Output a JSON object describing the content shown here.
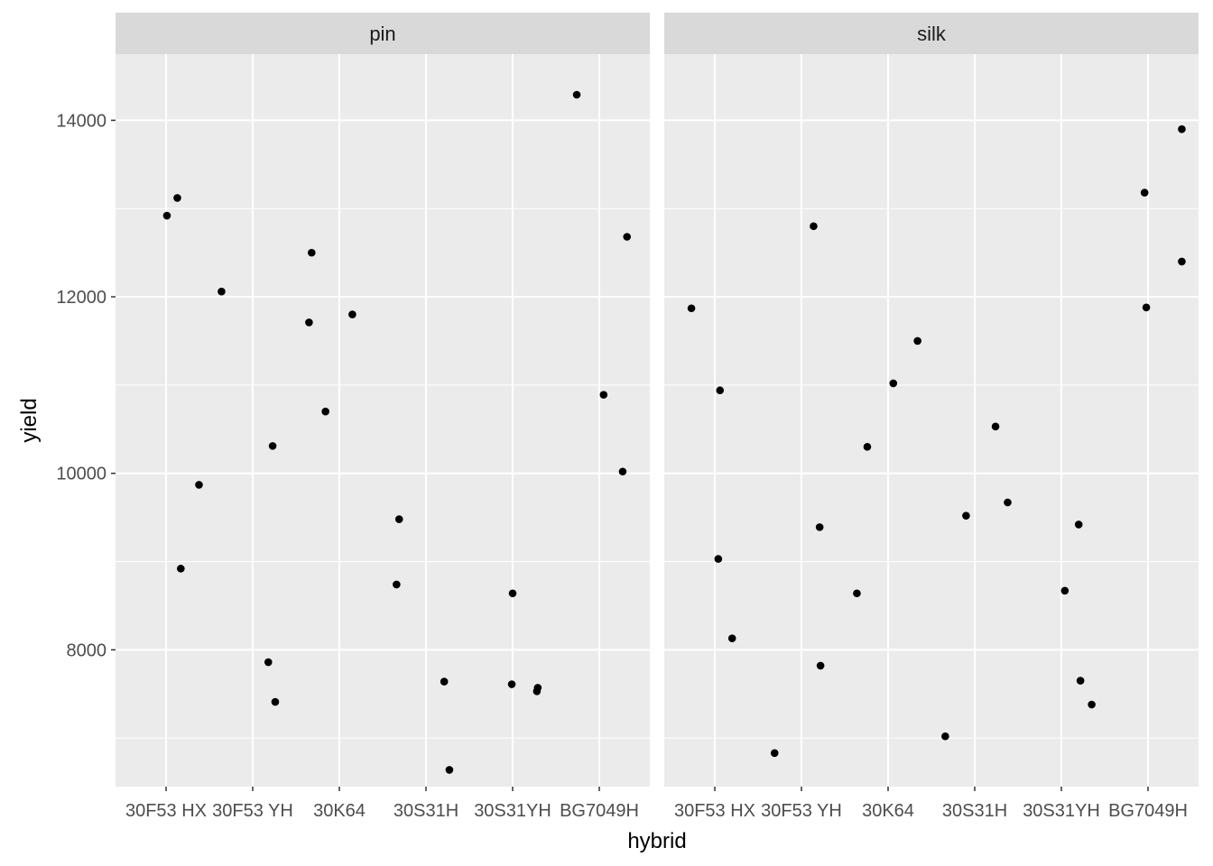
{
  "chart_data": {
    "type": "scatter",
    "xlabel": "hybrid",
    "ylabel": "yield",
    "categories": [
      "30F53 HX",
      "30F53 YH",
      "30K64",
      "30S31H",
      "30S31YH",
      "BG7049H"
    ],
    "ylim": [
      6450,
      14750
    ],
    "yticks": [
      8000,
      10000,
      12000,
      14000
    ],
    "grid": true,
    "colors": {
      "panel_bg": "#EBEBEB",
      "strip_bg": "#D9D9D9",
      "grid": "#FFFFFF",
      "point": "#000000"
    },
    "facets": [
      {
        "label": "pin",
        "points": [
          {
            "category": "30F53 HX",
            "jitter": 0.01,
            "y": 12920
          },
          {
            "category": "30F53 HX",
            "jitter": 0.13,
            "y": 13120
          },
          {
            "category": "30F53 HX",
            "jitter": 0.17,
            "y": 8920
          },
          {
            "category": "30F53 HX",
            "jitter": 0.38,
            "y": 9870
          },
          {
            "category": "30F53 HX",
            "jitter": 0.64,
            "y": 12060
          },
          {
            "category": "30F53 YH",
            "jitter": 0.18,
            "y": 7860
          },
          {
            "category": "30F53 YH",
            "jitter": 0.23,
            "y": 10310
          },
          {
            "category": "30F53 YH",
            "jitter": 0.26,
            "y": 7410
          },
          {
            "category": "30F53 YH",
            "jitter": 0.65,
            "y": 11710
          },
          {
            "category": "30F53 YH",
            "jitter": 0.68,
            "y": 12500
          },
          {
            "category": "30F53 YH",
            "jitter": 0.84,
            "y": 10700
          },
          {
            "category": "30K64",
            "jitter": 0.15,
            "y": 11800
          },
          {
            "category": "30K64",
            "jitter": 0.66,
            "y": 8740
          },
          {
            "category": "30K64",
            "jitter": 0.69,
            "y": 9480
          },
          {
            "category": "30S31H",
            "jitter": 0.21,
            "y": 7640
          },
          {
            "category": "30S31H",
            "jitter": 0.27,
            "y": 6640
          },
          {
            "category": "30S31YH",
            "jitter": 0.0,
            "y": 8640
          },
          {
            "category": "30S31YH",
            "jitter": -0.01,
            "y": 7610
          },
          {
            "category": "30S31YH",
            "jitter": 0.28,
            "y": 7530
          },
          {
            "category": "30S31YH",
            "jitter": 0.29,
            "y": 7570
          },
          {
            "category": "30S31YH",
            "jitter": 0.74,
            "y": 14290
          },
          {
            "category": "BG7049H",
            "jitter": 0.05,
            "y": 10890
          },
          {
            "category": "BG7049H",
            "jitter": 0.27,
            "y": 10020
          },
          {
            "category": "BG7049H",
            "jitter": 0.32,
            "y": 12680
          }
        ]
      },
      {
        "label": "silk",
        "points": [
          {
            "category": "30F53 HX",
            "jitter": -0.27,
            "y": 11870
          },
          {
            "category": "30F53 HX",
            "jitter": 0.04,
            "y": 9030
          },
          {
            "category": "30F53 HX",
            "jitter": 0.06,
            "y": 10940
          },
          {
            "category": "30F53 HX",
            "jitter": 0.2,
            "y": 8130
          },
          {
            "category": "30F53 HX",
            "jitter": 0.69,
            "y": 6830
          },
          {
            "category": "30F53 YH",
            "jitter": 0.14,
            "y": 12800
          },
          {
            "category": "30F53 YH",
            "jitter": 0.21,
            "y": 9390
          },
          {
            "category": "30F53 YH",
            "jitter": 0.22,
            "y": 7820
          },
          {
            "category": "30F53 YH",
            "jitter": 0.64,
            "y": 8640
          },
          {
            "category": "30F53 YH",
            "jitter": 0.76,
            "y": 10300
          },
          {
            "category": "30K64",
            "jitter": 0.06,
            "y": 11020
          },
          {
            "category": "30K64",
            "jitter": 0.34,
            "y": 11500
          },
          {
            "category": "30K64",
            "jitter": 0.66,
            "y": 7020
          },
          {
            "category": "30S31H",
            "jitter": -0.1,
            "y": 9520
          },
          {
            "category": "30S31H",
            "jitter": 0.24,
            "y": 10530
          },
          {
            "category": "30S31H",
            "jitter": 0.38,
            "y": 9670
          },
          {
            "category": "30S31YH",
            "jitter": 0.04,
            "y": 8670
          },
          {
            "category": "30S31YH",
            "jitter": 0.2,
            "y": 9420
          },
          {
            "category": "30S31YH",
            "jitter": 0.22,
            "y": 7650
          },
          {
            "category": "30S31YH",
            "jitter": 0.35,
            "y": 7380
          },
          {
            "category": "BG7049H",
            "jitter": -0.04,
            "y": 13180
          },
          {
            "category": "BG7049H",
            "jitter": -0.02,
            "y": 11880
          },
          {
            "category": "BG7049H",
            "jitter": 0.39,
            "y": 13900
          },
          {
            "category": "BG7049H",
            "jitter": 0.39,
            "y": 12400
          }
        ]
      }
    ]
  }
}
